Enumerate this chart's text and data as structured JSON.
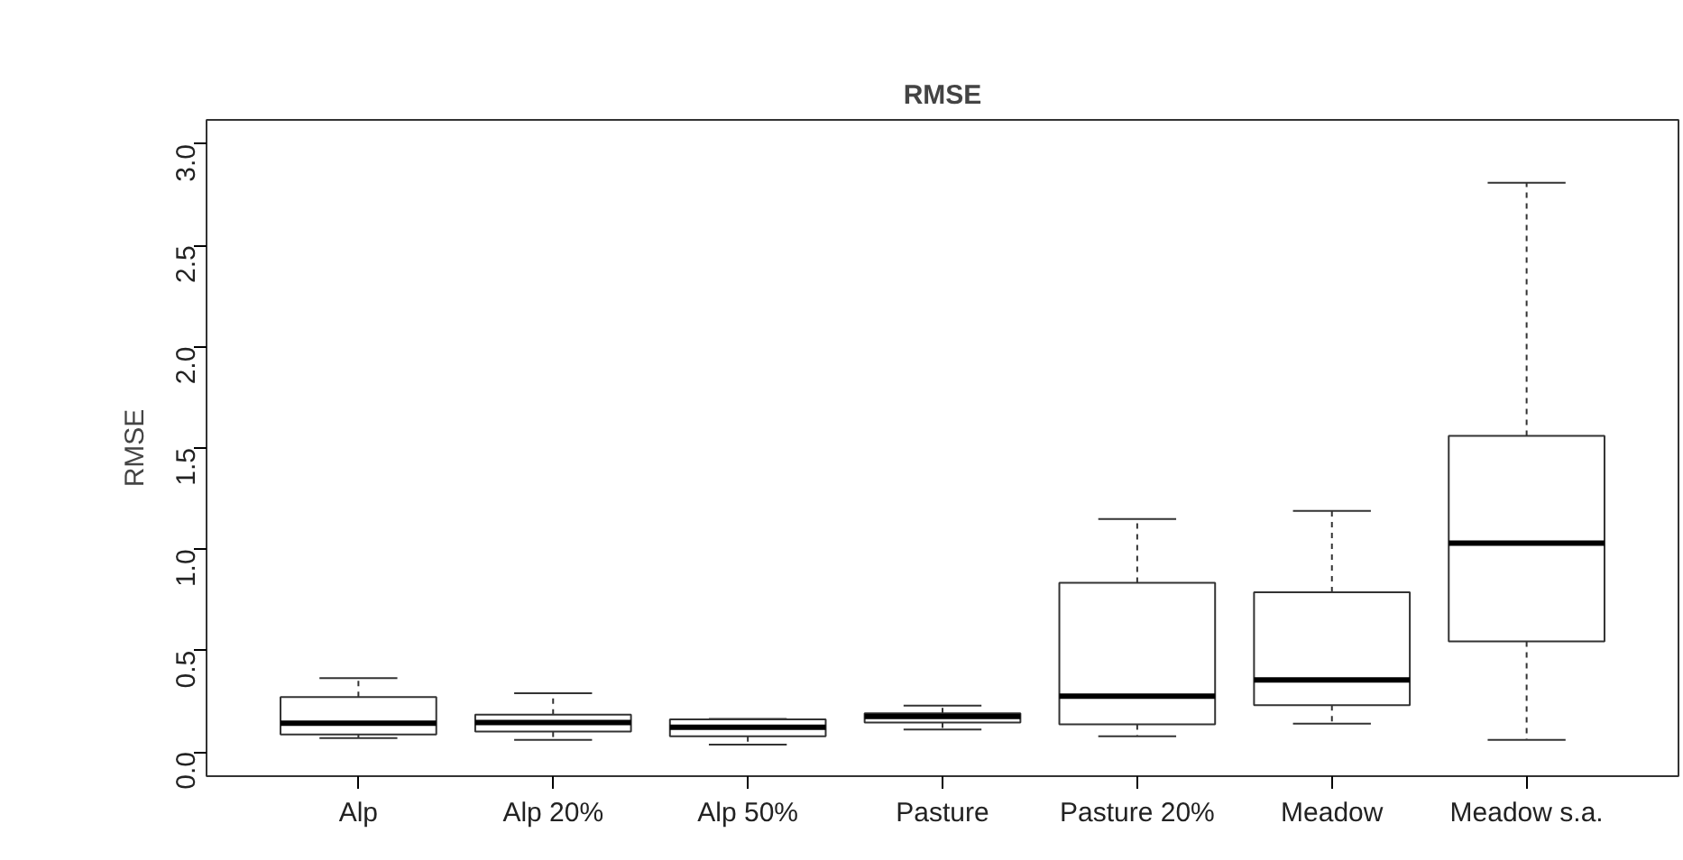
{
  "chart_data": {
    "type": "box",
    "title": "RMSE",
    "ylabel": "RMSE",
    "categories": [
      "Alp",
      "Alp 20%",
      "Alp 50%",
      "Pasture",
      "Pasture 20%",
      "Meadow",
      "Meadow s.a."
    ],
    "boxes": [
      {
        "low": 0.068,
        "q1": 0.086,
        "median": 0.142,
        "q3": 0.27,
        "high": 0.364
      },
      {
        "low": 0.059,
        "q1": 0.1,
        "median": 0.145,
        "q3": 0.184,
        "high": 0.29
      },
      {
        "low": 0.036,
        "q1": 0.077,
        "median": 0.121,
        "q3": 0.16,
        "high": 0.163
      },
      {
        "low": 0.11,
        "q1": 0.145,
        "median": 0.175,
        "q3": 0.19,
        "high": 0.228
      },
      {
        "low": 0.077,
        "q1": 0.136,
        "median": 0.275,
        "q3": 0.835,
        "high": 1.149
      },
      {
        "low": 0.139,
        "q1": 0.231,
        "median": 0.355,
        "q3": 0.788,
        "high": 1.19
      },
      {
        "low": 0.059,
        "q1": 0.545,
        "median": 1.03,
        "q3": 1.56,
        "high": 2.81
      }
    ],
    "ylim": [
      -0.12,
      3.12
    ],
    "yticks": [
      {
        "value": 0,
        "label": "0.0"
      },
      0.5,
      {
        "value": 1,
        "label": "1.0"
      },
      1.5,
      {
        "value": 2,
        "label": "2.0"
      },
      2.5,
      {
        "value": 3,
        "label": "3.0"
      }
    ]
  }
}
